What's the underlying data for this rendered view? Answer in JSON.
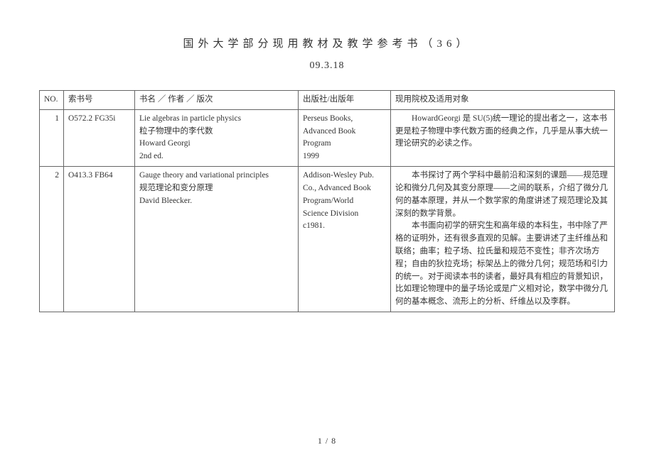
{
  "title": "国外大学部分现用教材及教学参考书（36）",
  "date": "09.3.18",
  "headers": {
    "no": "NO.",
    "call": "索书号",
    "title": "书名 ／ 作者 ／ 版次",
    "pub": "出版社/出版年",
    "desc": "现用院校及适用对象"
  },
  "rows": [
    {
      "no": "1",
      "call": "O572.2 FG35i",
      "title_lines": [
        "Lie algebras in particle physics",
        "粒子物理中的李代数",
        "Howard Georgi",
        "2nd ed."
      ],
      "pub_lines": [
        "Perseus Books,",
        "Advanced Book",
        "Program",
        "1999"
      ],
      "desc_paras": [
        "HowardGeorgi 是 SU(5)统一理论的提出者之一，这本书更是粒子物理中李代数方面的经典之作，几乎是从事大统一理论研究的必读之作。"
      ]
    },
    {
      "no": "2",
      "call": "O413.3 FB64",
      "title_lines": [
        "Gauge theory and variational principles",
        "规范理论和变分原理",
        "David Bleecker."
      ],
      "pub_lines": [
        "Addison-Wesley Pub.",
        "Co., Advanced Book",
        "Program/World",
        "Science Division",
        "c1981."
      ],
      "desc_paras": [
        "本书探讨了两个学科中最前沿和深刻的课题——规范理论和微分几何及其变分原理——之间的联系，介绍了微分几何的基本原理，并从一个数学家的角度讲述了规范理论及其深刻的数学背景。",
        "本书面向初学的研究生和高年级的本科生，书中除了严格的证明外，还有很多直观的见解。主要讲述了主纤维丛和联络；曲率；粒子场、拉氏量和规范不变性；非齐次场方程；自由的狄拉克场；标架丛上的微分几何；规范场和引力的统一。对于阅读本书的读者，最好具有相应的背景知识，比如理论物理中的量子场论或是广义相对论，数学中微分几何的基本概念、流形上的分析、纤维丛以及李群。"
      ]
    }
  ],
  "footer": "1 / 8"
}
